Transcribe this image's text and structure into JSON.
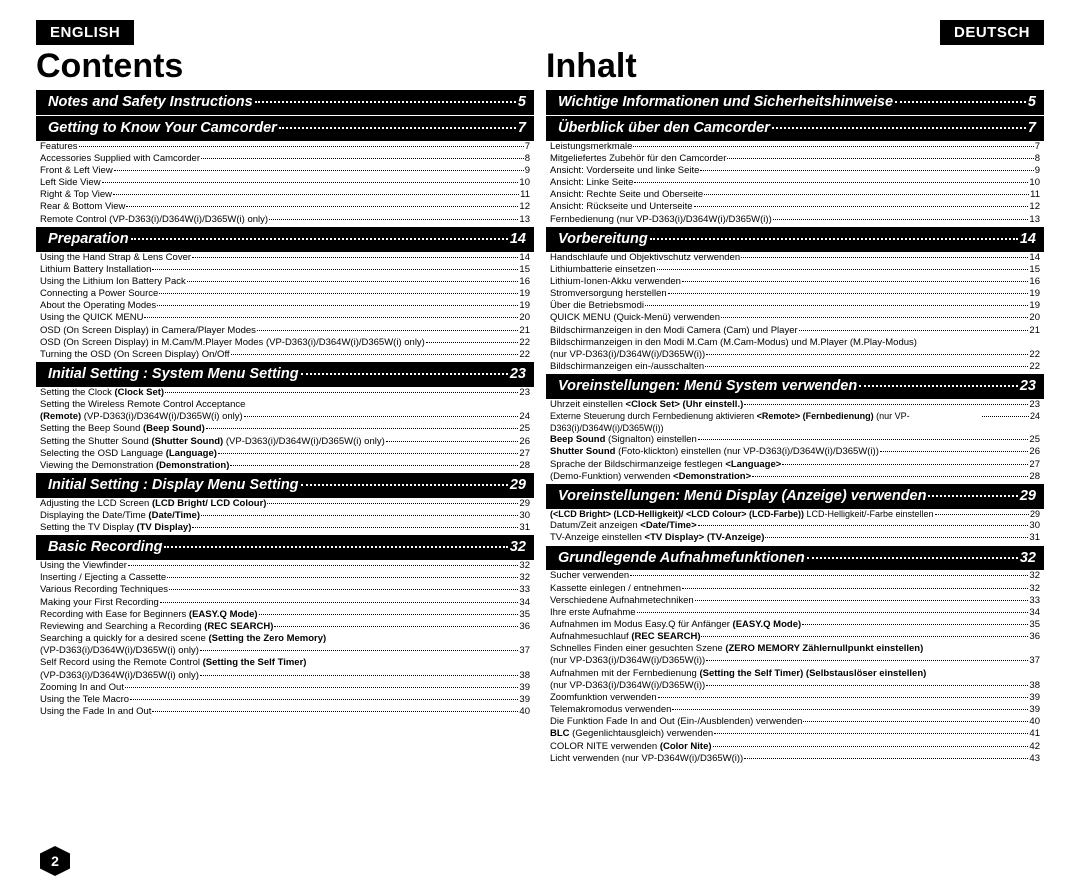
{
  "page_number": "2",
  "left": {
    "lang": "ENGLISH",
    "title": "Contents",
    "sections": [
      {
        "title": "Notes and Safety Instructions",
        "page": "5",
        "items": []
      },
      {
        "title": "Getting to Know Your Camcorder",
        "page": "7",
        "items": [
          {
            "t": "Features",
            "p": "7"
          },
          {
            "t": "Accessories Supplied with Camcorder",
            "p": "8"
          },
          {
            "t": "Front & Left View",
            "p": "9"
          },
          {
            "t": "Left Side View",
            "p": "10"
          },
          {
            "t": "Right & Top View",
            "p": "11"
          },
          {
            "t": "Rear & Bottom View",
            "p": "12"
          },
          {
            "t": "Remote Control (VP-D363(i)/D364W(i)/D365W(i) only)",
            "p": "13"
          }
        ]
      },
      {
        "title": "Preparation",
        "page": "14",
        "items": [
          {
            "t": "Using the Hand Strap & Lens Cover",
            "p": "14"
          },
          {
            "t": "Lithium Battery Installation",
            "p": "15"
          },
          {
            "t": "Using the Lithium Ion Battery Pack",
            "p": "16"
          },
          {
            "t": "Connecting a Power Source",
            "p": "19"
          },
          {
            "t": "About the Operating Modes",
            "p": "19"
          },
          {
            "t": "Using the QUICK MENU",
            "p": "20"
          },
          {
            "t": "OSD (On Screen Display) in Camera/Player Modes",
            "p": "21"
          },
          {
            "t": "OSD (On Screen Display) in M.Cam/M.Player Modes (VP-D363(i)/D364W(i)/D365W(i) only)",
            "p": "22"
          },
          {
            "t": "Turning the OSD (On Screen Display) On/Off",
            "p": "22"
          }
        ]
      },
      {
        "title": "Initial Setting : System Menu Setting",
        "page": "23",
        "items": [
          {
            "t": "Setting the Clock <b>(Clock Set)</b>",
            "p": "23"
          },
          {
            "t": "Setting the Wireless Remote Control Acceptance",
            "cont": true
          },
          {
            "t": "<b>(Remote)</b> (VP-D363(i)/D364W(i)/D365W(i) only)",
            "p": "24"
          },
          {
            "t": "Setting the Beep Sound <b>(Beep Sound)</b>",
            "p": "25"
          },
          {
            "t": "Setting the Shutter Sound <b>(Shutter Sound)</b> (VP-D363(i)/D364W(i)/D365W(i) only)",
            "p": "26"
          },
          {
            "t": "Selecting the OSD Language <b>(Language)</b>",
            "p": "27"
          },
          {
            "t": "Viewing the Demonstration <b>(Demonstration)</b>",
            "p": "28"
          }
        ]
      },
      {
        "title": "Initial Setting : Display Menu Setting",
        "page": "29",
        "items": [
          {
            "t": "Adjusting the LCD Screen <b>(LCD Bright/ LCD Colour)</b>",
            "p": "29"
          },
          {
            "t": "Displaying the Date/Time <b>(Date/Time)</b>",
            "p": "30"
          },
          {
            "t": "Setting the TV Display <b>(TV Display)</b>",
            "p": "31"
          }
        ]
      },
      {
        "title": "Basic Recording",
        "page": "32",
        "items": [
          {
            "t": "Using the Viewfinder",
            "p": "32"
          },
          {
            "t": "Inserting / Ejecting a Cassette",
            "p": "32"
          },
          {
            "t": "Various Recording Techniques",
            "p": "33"
          },
          {
            "t": "Making your First Recording",
            "p": "34"
          },
          {
            "t": "Recording with Ease for Beginners <b>(EASY.Q Mode)</b>",
            "p": "35"
          },
          {
            "t": "Reviewing and Searching a Recording <b>(REC SEARCH)</b>",
            "p": "36"
          },
          {
            "t": "Searching a quickly for a desired scene <b>(Setting the Zero Memory)</b>",
            "cont": true
          },
          {
            "t": "(VP-D363(i)/D364W(i)/D365W(i) only)",
            "p": "37"
          },
          {
            "t": "Self Record using the Remote Control <b>(Setting the Self Timer)</b>",
            "cont": true
          },
          {
            "t": "(VP-D363(i)/D364W(i)/D365W(i) only)",
            "p": "38"
          },
          {
            "t": "Zooming In and Out",
            "p": "39"
          },
          {
            "t": "Using the Tele Macro",
            "p": "39"
          },
          {
            "t": "Using the Fade In and Out",
            "p": "40"
          }
        ]
      }
    ]
  },
  "right": {
    "lang": "DEUTSCH",
    "title": "Inhalt",
    "sections": [
      {
        "title": "Wichtige Informationen und Sicherheitshinweise",
        "page": "5",
        "items": []
      },
      {
        "title": "Überblick über den Camcorder",
        "page": "7",
        "items": [
          {
            "t": "Leistungsmerkmale",
            "p": "7"
          },
          {
            "t": "Mitgeliefertes Zubehör für den Camcorder",
            "p": "8"
          },
          {
            "t": "Ansicht: Vorderseite und linke Seite",
            "p": "9"
          },
          {
            "t": "Ansicht: Linke Seite",
            "p": "10"
          },
          {
            "t": "Ansicht: Rechte Seite und Oberseite",
            "p": "11"
          },
          {
            "t": "Ansicht: Rückseite und Unterseite",
            "p": "12"
          },
          {
            "t": "Fernbedienung (nur VP-D363(i)/D364W(i)/D365W(i))",
            "p": "13"
          }
        ]
      },
      {
        "title": "Vorbereitung",
        "page": "14",
        "items": [
          {
            "t": "Handschlaufe und Objektivschutz verwenden",
            "p": "14"
          },
          {
            "t": "Lithiumbatterie einsetzen",
            "p": "15"
          },
          {
            "t": "Lithium-Ionen-Akku verwenden",
            "p": "16"
          },
          {
            "t": "Stromversorgung herstellen",
            "p": "19"
          },
          {
            "t": "Über die Betriebsmodi",
            "p": "19"
          },
          {
            "t": "QUICK MENU (Quick-Menü) verwenden",
            "p": "20"
          },
          {
            "t": "Bildschirmanzeigen in den Modi Camera (Cam) und Player",
            "p": "21"
          },
          {
            "t": "Bildschirmanzeigen in den Modi M.Cam (M.Cam-Modus) und M.Player (M.Play-Modus)",
            "cont": true
          },
          {
            "t": "(nur VP-D363(i)/D364W(i)/D365W(i))",
            "p": "22"
          },
          {
            "t": "Bildschirmanzeigen ein-/ausschalten",
            "p": "22"
          }
        ]
      },
      {
        "title": "Voreinstellungen: Menü System verwenden",
        "page": "23",
        "items": [
          {
            "t": "Uhrzeit einstellen <b>&lt;Clock Set&gt; (Uhr einstell.)</b>",
            "p": "23"
          },
          {
            "t": "Externe Steuerung durch Fernbedienung aktivieren <b>&lt;Remote&gt; (Fernbedienung)</b> (nur VP-D363(i)/D364W(i)/D365W(i))",
            "p": "24",
            "small": true
          },
          {
            "t": "<b>Beep Sound</b> (Signalton) einstellen",
            "p": "25"
          },
          {
            "t": "<b>Shutter Sound</b> (Foto-klickton) einstellen (nur VP-D363(i)/D364W(i)/D365W(i))",
            "p": "26"
          },
          {
            "t": "Sprache der Bildschirmanzeige festlegen <b>&lt;Language&gt;</b>",
            "p": "27"
          },
          {
            "t": "(Demo-Funktion) verwenden <b>&lt;Demonstration&gt;</b>",
            "p": "28"
          }
        ]
      },
      {
        "title": "Voreinstellungen: Menü Display (Anzeige) verwenden",
        "page": "29",
        "items": [
          {
            "t": "<b>(&lt;LCD Bright&gt; (LCD-Helligkeit)/ &lt;LCD Colour&gt; (LCD-Farbe))</b> LCD-Helligkeit/-Farbe einstellen",
            "p": "29",
            "small": true
          },
          {
            "t": "Datum/Zeit anzeigen <b>&lt;Date/Time&gt;</b>",
            "p": "30"
          },
          {
            "t": "TV-Anzeige einstellen <b>&lt;TV Display&gt; (TV-Anzeige)</b>",
            "p": "31"
          }
        ]
      },
      {
        "title": "Grundlegende Aufnahmefunktionen",
        "page": "32",
        "items": [
          {
            "t": "Sucher verwenden",
            "p": "32"
          },
          {
            "t": "Kassette einlegen / entnehmen",
            "p": "32"
          },
          {
            "t": "Verschiedene Aufnahmetechniken",
            "p": "33"
          },
          {
            "t": "Ihre erste Aufnahme",
            "p": "34"
          },
          {
            "t": "Aufnahmen im Modus Easy.Q für Anfänger <b>(EASY.Q Mode)</b>",
            "p": "35"
          },
          {
            "t": "Aufnahmesuchlauf <b>(REC SEARCH)</b>",
            "p": "36"
          },
          {
            "t": "Schnelles Finden einer gesuchten Szene <b>(ZERO MEMORY Zählernullpunkt einstellen)</b>",
            "cont": true
          },
          {
            "t": "(nur VP-D363(i)/D364W(i)/D365W(i))",
            "p": "37"
          },
          {
            "t": "Aufnahmen mit der Fernbedienung <b>(Setting the Self Timer) (Selbstauslöser einstellen)</b>",
            "cont": true
          },
          {
            "t": "(nur VP-D363(i)/D364W(i)/D365W(i))",
            "p": "38"
          },
          {
            "t": "Zoomfunktion verwenden",
            "p": "39"
          },
          {
            "t": "Telemakromodus verwenden",
            "p": "39"
          },
          {
            "t": "Die Funktion Fade In and Out (Ein-/Ausblenden) verwenden",
            "p": "40"
          },
          {
            "t": "<b>BLC</b> (Gegenlichtausgleich) verwenden",
            "p": "41"
          },
          {
            "t": "COLOR NITE verwenden <b>(Color Nite)</b>",
            "p": "42"
          },
          {
            "t": "Licht verwenden (nur VP-D364W(i)/D365W(i))",
            "p": "43"
          }
        ]
      }
    ]
  }
}
